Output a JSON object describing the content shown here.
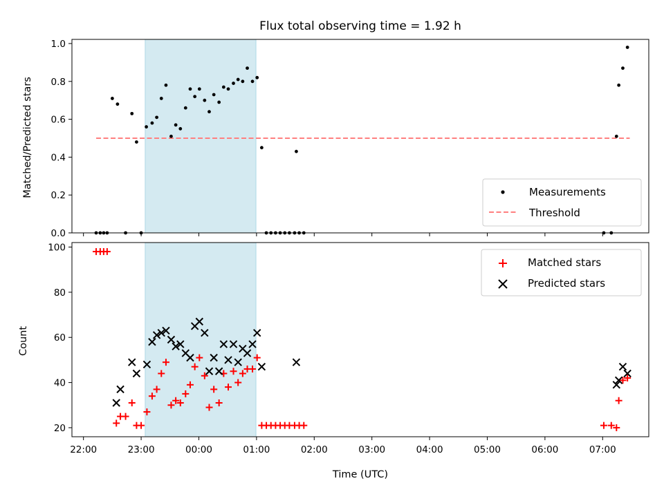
{
  "chart_data": [
    {
      "type": "scatter",
      "title": "Flux total observing time = 1.92 h",
      "xlabel": "",
      "ylabel": "Matched/Predicted stars",
      "ylim": [
        0,
        1.0
      ],
      "yticks": [
        "0.0",
        "0.2",
        "0.4",
        "0.6",
        "0.8",
        "1.0"
      ],
      "x_unit": "hours since 22:00 UTC",
      "xlim": [
        -0.2,
        9.8
      ],
      "highlight_span": [
        1.07,
        2.99
      ],
      "highlight_color": "#d4eaf1",
      "legend_position": "lower right",
      "series": [
        {
          "name": "Measurements",
          "marker": "dot",
          "color": "#000000",
          "points": [
            [
              0.22,
              0
            ],
            [
              0.29,
              0
            ],
            [
              0.35,
              0
            ],
            [
              0.41,
              0
            ],
            [
              0.5,
              0.71
            ],
            [
              0.59,
              0.68
            ],
            [
              0.73,
              0
            ],
            [
              0.84,
              0.63
            ],
            [
              0.92,
              0.48
            ],
            [
              1.0,
              0
            ],
            [
              1.09,
              0.56
            ],
            [
              1.19,
              0.58
            ],
            [
              1.27,
              0.61
            ],
            [
              1.35,
              0.71
            ],
            [
              1.43,
              0.78
            ],
            [
              1.52,
              0.51
            ],
            [
              1.6,
              0.57
            ],
            [
              1.68,
              0.55
            ],
            [
              1.77,
              0.66
            ],
            [
              1.85,
              0.76
            ],
            [
              1.93,
              0.72
            ],
            [
              2.01,
              0.76
            ],
            [
              2.1,
              0.7
            ],
            [
              2.18,
              0.64
            ],
            [
              2.26,
              0.73
            ],
            [
              2.35,
              0.69
            ],
            [
              2.43,
              0.77
            ],
            [
              2.51,
              0.76
            ],
            [
              2.6,
              0.79
            ],
            [
              2.68,
              0.81
            ],
            [
              2.76,
              0.8
            ],
            [
              2.84,
              0.87
            ],
            [
              2.93,
              0.8
            ],
            [
              3.01,
              0.82
            ],
            [
              3.09,
              0.45
            ],
            [
              3.17,
              0
            ],
            [
              3.25,
              0
            ],
            [
              3.33,
              0
            ],
            [
              3.41,
              0
            ],
            [
              3.49,
              0
            ],
            [
              3.57,
              0
            ],
            [
              3.66,
              0
            ],
            [
              3.69,
              0.43
            ],
            [
              3.74,
              0
            ],
            [
              3.82,
              0
            ],
            [
              9.02,
              0
            ],
            [
              9.15,
              0
            ],
            [
              9.24,
              0.51
            ],
            [
              9.28,
              0.78
            ],
            [
              9.35,
              0.87
            ],
            [
              9.43,
              0.98
            ]
          ]
        },
        {
          "name": "Threshold",
          "marker": "dashed-line",
          "color": "#ff7f7f",
          "x": [
            0.22,
            9.47
          ],
          "y": [
            0.5,
            0.5
          ]
        }
      ]
    },
    {
      "type": "scatter",
      "title": "",
      "xlabel": "Time (UTC)",
      "ylabel": "Count",
      "ylim": [
        16,
        102
      ],
      "yticks": [
        "20",
        "40",
        "60",
        "80",
        "100"
      ],
      "xticks": [
        "22:00",
        "23:00",
        "00:00",
        "01:00",
        "02:00",
        "03:00",
        "04:00",
        "05:00",
        "06:00",
        "07:00"
      ],
      "x_unit": "hours since 22:00 UTC",
      "xlim": [
        -0.2,
        9.8
      ],
      "highlight_span": [
        1.07,
        2.99
      ],
      "highlight_color": "#d4eaf1",
      "legend_position": "upper right",
      "series": [
        {
          "name": "Matched stars",
          "marker": "plus",
          "color": "#ff0000",
          "points": [
            [
              0.22,
              98
            ],
            [
              0.29,
              98
            ],
            [
              0.35,
              98
            ],
            [
              0.41,
              98
            ],
            [
              0.57,
              22
            ],
            [
              0.64,
              25
            ],
            [
              0.73,
              25
            ],
            [
              0.84,
              31
            ],
            [
              0.92,
              21
            ],
            [
              1.0,
              21
            ],
            [
              1.1,
              27
            ],
            [
              1.19,
              34
            ],
            [
              1.27,
              37
            ],
            [
              1.35,
              44
            ],
            [
              1.43,
              49
            ],
            [
              1.52,
              30
            ],
            [
              1.6,
              32
            ],
            [
              1.68,
              31
            ],
            [
              1.77,
              35
            ],
            [
              1.85,
              39
            ],
            [
              1.93,
              47
            ],
            [
              2.01,
              51
            ],
            [
              2.1,
              43
            ],
            [
              2.18,
              29
            ],
            [
              2.26,
              37
            ],
            [
              2.35,
              31
            ],
            [
              2.43,
              44
            ],
            [
              2.51,
              38
            ],
            [
              2.6,
              45
            ],
            [
              2.68,
              40
            ],
            [
              2.76,
              44
            ],
            [
              2.84,
              46
            ],
            [
              2.93,
              46
            ],
            [
              3.01,
              51
            ],
            [
              3.09,
              21
            ],
            [
              3.17,
              21
            ],
            [
              3.25,
              21
            ],
            [
              3.33,
              21
            ],
            [
              3.41,
              21
            ],
            [
              3.49,
              21
            ],
            [
              3.57,
              21
            ],
            [
              3.66,
              21
            ],
            [
              3.74,
              21
            ],
            [
              3.82,
              21
            ],
            [
              9.02,
              21
            ],
            [
              9.15,
              21
            ],
            [
              9.24,
              20
            ],
            [
              9.28,
              32
            ],
            [
              9.35,
              41
            ],
            [
              9.43,
              42
            ]
          ]
        },
        {
          "name": "Predicted stars",
          "marker": "x",
          "color": "#000000",
          "points": [
            [
              0.57,
              31
            ],
            [
              0.64,
              37
            ],
            [
              0.84,
              49
            ],
            [
              0.92,
              44
            ],
            [
              1.1,
              48
            ],
            [
              1.19,
              58
            ],
            [
              1.27,
              61
            ],
            [
              1.35,
              62
            ],
            [
              1.43,
              63
            ],
            [
              1.52,
              59
            ],
            [
              1.6,
              56
            ],
            [
              1.68,
              57
            ],
            [
              1.77,
              53
            ],
            [
              1.85,
              51
            ],
            [
              1.93,
              65
            ],
            [
              2.01,
              67
            ],
            [
              2.1,
              62
            ],
            [
              2.18,
              45
            ],
            [
              2.26,
              51
            ],
            [
              2.35,
              45
            ],
            [
              2.43,
              57
            ],
            [
              2.51,
              50
            ],
            [
              2.6,
              57
            ],
            [
              2.68,
              49
            ],
            [
              2.76,
              55
            ],
            [
              2.84,
              53
            ],
            [
              2.93,
              57
            ],
            [
              3.01,
              62
            ],
            [
              3.09,
              47
            ],
            [
              3.69,
              49
            ],
            [
              9.24,
              39
            ],
            [
              9.28,
              41
            ],
            [
              9.35,
              47
            ],
            [
              9.43,
              44
            ]
          ]
        }
      ]
    }
  ],
  "legend_top": [
    {
      "label": "Measurements"
    },
    {
      "label": "Threshold"
    }
  ],
  "legend_bottom": [
    {
      "label": "Matched stars"
    },
    {
      "label": "Predicted stars"
    }
  ]
}
